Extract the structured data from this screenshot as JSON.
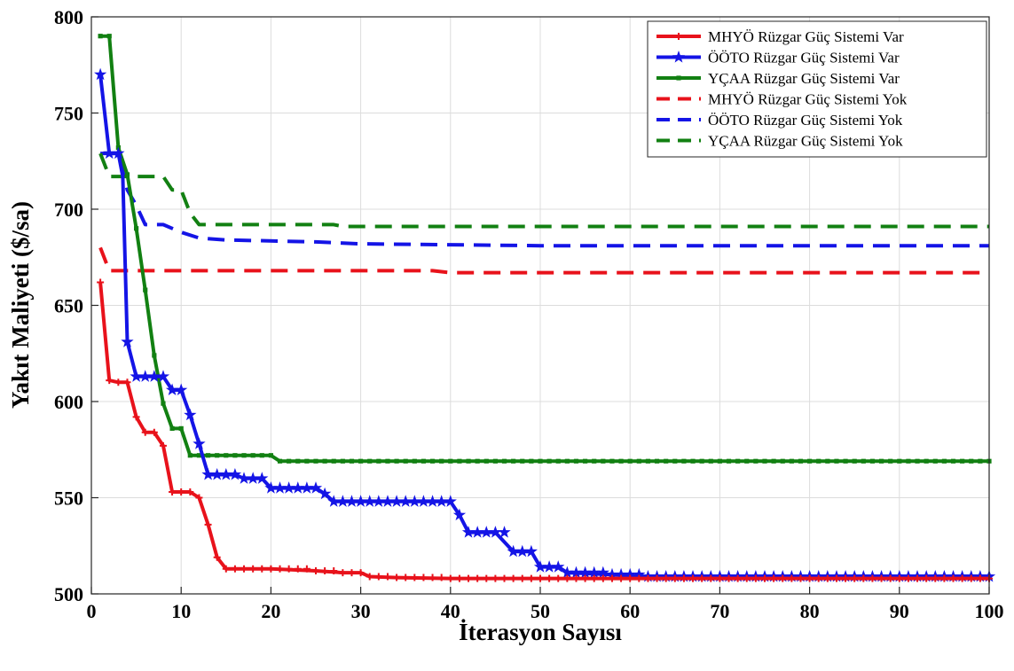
{
  "chart_data": {
    "type": "line",
    "xlabel": "İterasyon Sayısı",
    "ylabel": "Yakıt Maliyeti ($/sa)",
    "xlim": [
      0,
      100
    ],
    "ylim": [
      500,
      800
    ],
    "x_ticks": [
      0,
      10,
      20,
      30,
      40,
      50,
      60,
      70,
      80,
      90,
      100
    ],
    "y_ticks": [
      500,
      550,
      600,
      650,
      700,
      750,
      800
    ],
    "x_tick_labels": [
      "0",
      "10",
      "20",
      "30",
      "40",
      "50",
      "60",
      "70",
      "80",
      "90",
      "100"
    ],
    "y_tick_labels": [
      "500",
      "550",
      "600",
      "650",
      "700",
      "750",
      "800"
    ],
    "grid": true,
    "legend_position": "top-right",
    "series": [
      {
        "name": "MHYÖ Rüzgar Güç Sistemi Var",
        "color": "#e8121b",
        "style": "solid",
        "marker": "plus",
        "points": [
          [
            1,
            662
          ],
          [
            2,
            611
          ],
          [
            3,
            610
          ],
          [
            4,
            610
          ],
          [
            5,
            592
          ],
          [
            6,
            584
          ],
          [
            7,
            584
          ],
          [
            8,
            577
          ],
          [
            9,
            553
          ],
          [
            10,
            553
          ],
          [
            11,
            553
          ],
          [
            12,
            550
          ],
          [
            13,
            536
          ],
          [
            14,
            519
          ],
          [
            15,
            513
          ],
          [
            20,
            513
          ],
          [
            25,
            512
          ],
          [
            28,
            511
          ],
          [
            30,
            511
          ],
          [
            31,
            509
          ],
          [
            34,
            508.5
          ],
          [
            40,
            508
          ],
          [
            50,
            508
          ],
          [
            60,
            508
          ],
          [
            100,
            508
          ]
        ]
      },
      {
        "name": "ÖÖTO Rüzgar Güç Sistemi Var",
        "color": "#1414e6",
        "style": "solid",
        "marker": "star",
        "points": [
          [
            1,
            770
          ],
          [
            2,
            729
          ],
          [
            3,
            729
          ],
          [
            3.5,
            717
          ],
          [
            4,
            631
          ],
          [
            5,
            613
          ],
          [
            6,
            613
          ],
          [
            8,
            613
          ],
          [
            9,
            606
          ],
          [
            10,
            606
          ],
          [
            11,
            593
          ],
          [
            12,
            578
          ],
          [
            13,
            562
          ],
          [
            16,
            562
          ],
          [
            17,
            560
          ],
          [
            19,
            560
          ],
          [
            20,
            555
          ],
          [
            25,
            555
          ],
          [
            26,
            552
          ],
          [
            27,
            548
          ],
          [
            39,
            548
          ],
          [
            40,
            548
          ],
          [
            41,
            541
          ],
          [
            42,
            532
          ],
          [
            43,
            532
          ],
          [
            45,
            532
          ],
          [
            47,
            522
          ],
          [
            48,
            522
          ],
          [
            49,
            522
          ],
          [
            50,
            514
          ],
          [
            52,
            514
          ],
          [
            53,
            511
          ],
          [
            58,
            510
          ],
          [
            62,
            509
          ],
          [
            100,
            509
          ]
        ]
      },
      {
        "name": "YÇAA Rüzgar Güç Sistemi Var",
        "color": "#128012",
        "style": "solid",
        "marker": "square",
        "points": [
          [
            1,
            790
          ],
          [
            2,
            790
          ],
          [
            3,
            732
          ],
          [
            4,
            718
          ],
          [
            5,
            690
          ],
          [
            6,
            658
          ],
          [
            7,
            624
          ],
          [
            8,
            599
          ],
          [
            9,
            586
          ],
          [
            10,
            586
          ],
          [
            11,
            572
          ],
          [
            20,
            572
          ],
          [
            21,
            569
          ],
          [
            100,
            569
          ]
        ]
      },
      {
        "name": "MHYÖ Rüzgar Güç Sistemi Yok",
        "color": "#e8121b",
        "style": "dashed",
        "marker": "none",
        "points": [
          [
            1,
            680
          ],
          [
            2,
            668
          ],
          [
            38,
            668
          ],
          [
            40,
            667
          ],
          [
            100,
            667
          ]
        ]
      },
      {
        "name": "ÖÖTO Rüzgar Güç Sistemi Yok",
        "color": "#1414e6",
        "style": "dashed",
        "marker": "none",
        "points": [
          [
            1,
            729
          ],
          [
            3,
            729
          ],
          [
            4,
            710
          ],
          [
            5,
            702
          ],
          [
            6,
            692
          ],
          [
            8,
            692
          ],
          [
            10,
            688
          ],
          [
            12,
            685
          ],
          [
            15,
            684
          ],
          [
            25,
            683
          ],
          [
            30,
            682
          ],
          [
            50,
            681
          ],
          [
            100,
            681
          ]
        ]
      },
      {
        "name": "YÇAA Rüzgar Güç Sistemi Yok",
        "color": "#128012",
        "style": "dashed",
        "marker": "none",
        "points": [
          [
            1,
            729
          ],
          [
            2,
            717
          ],
          [
            8,
            717
          ],
          [
            9,
            710
          ],
          [
            10,
            710
          ],
          [
            11,
            698
          ],
          [
            12,
            692
          ],
          [
            27,
            692
          ],
          [
            28,
            691
          ],
          [
            100,
            691
          ]
        ]
      }
    ]
  }
}
